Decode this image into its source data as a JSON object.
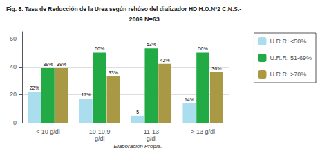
{
  "chart_data": {
    "type": "bar",
    "title": "Fig. 8. Tasa de Reducción de la Urea según rehúso del dializador HD H.O.Nº2 C.N.S.-",
    "subtitle": "2009 N=63",
    "annotations": [
      "Elaboración Propia."
    ],
    "categories": [
      "< 10 g/dl",
      "10-10.9\ng/dl",
      "11-13\ng/dl",
      "> 13 g/dl"
    ],
    "series": [
      {
        "name": "U.R.R. <50%",
        "color": "#aaddee",
        "values": [
          22,
          17,
          5,
          14
        ],
        "value_labels": [
          "22%",
          "17%",
          "5",
          "14%"
        ]
      },
      {
        "name": "U.R.R. 51-69%",
        "color": "#22aa44",
        "values": [
          39,
          50,
          53,
          50
        ],
        "value_labels": [
          "39%",
          "50%",
          "53%",
          "50%"
        ]
      },
      {
        "name": "U.R.R. >70%",
        "color": "#aa9944",
        "values": [
          39,
          33,
          42,
          36
        ],
        "value_labels": [
          "39%",
          "33%",
          "42%",
          "36%"
        ]
      }
    ],
    "ylim": [
      0,
      65
    ],
    "yticks": [
      0,
      20,
      40,
      60
    ],
    "grid": true,
    "legend": "right",
    "data_labels": true
  }
}
